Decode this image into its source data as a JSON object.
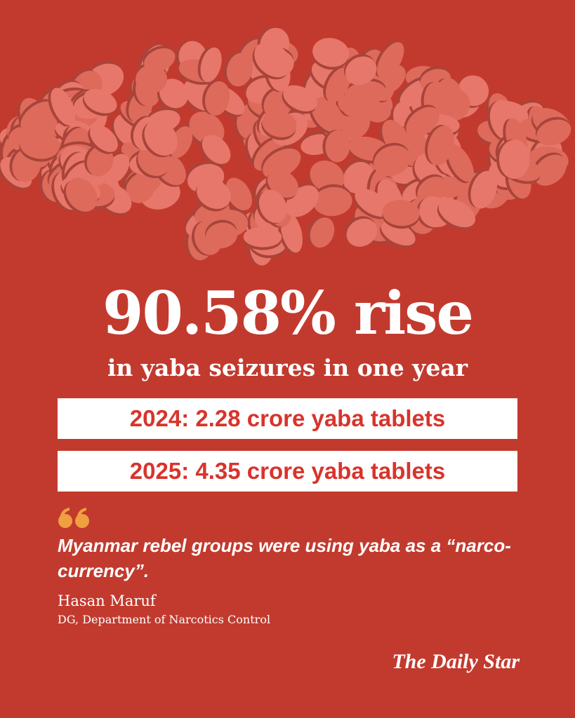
{
  "headline": "90.58% rise",
  "subheadline": "in yaba seizures in one year",
  "stats": [
    "2024: 2.28 crore yaba tablets",
    "2025: 4.35 crore yaba tablets"
  ],
  "quote": {
    "text": "Myanmar rebel groups were using yaba as a “narco-currency”.",
    "name": "Hasan Maruf",
    "role": "DG, Department of Narcotics Control"
  },
  "logo": "The Daily Star"
}
